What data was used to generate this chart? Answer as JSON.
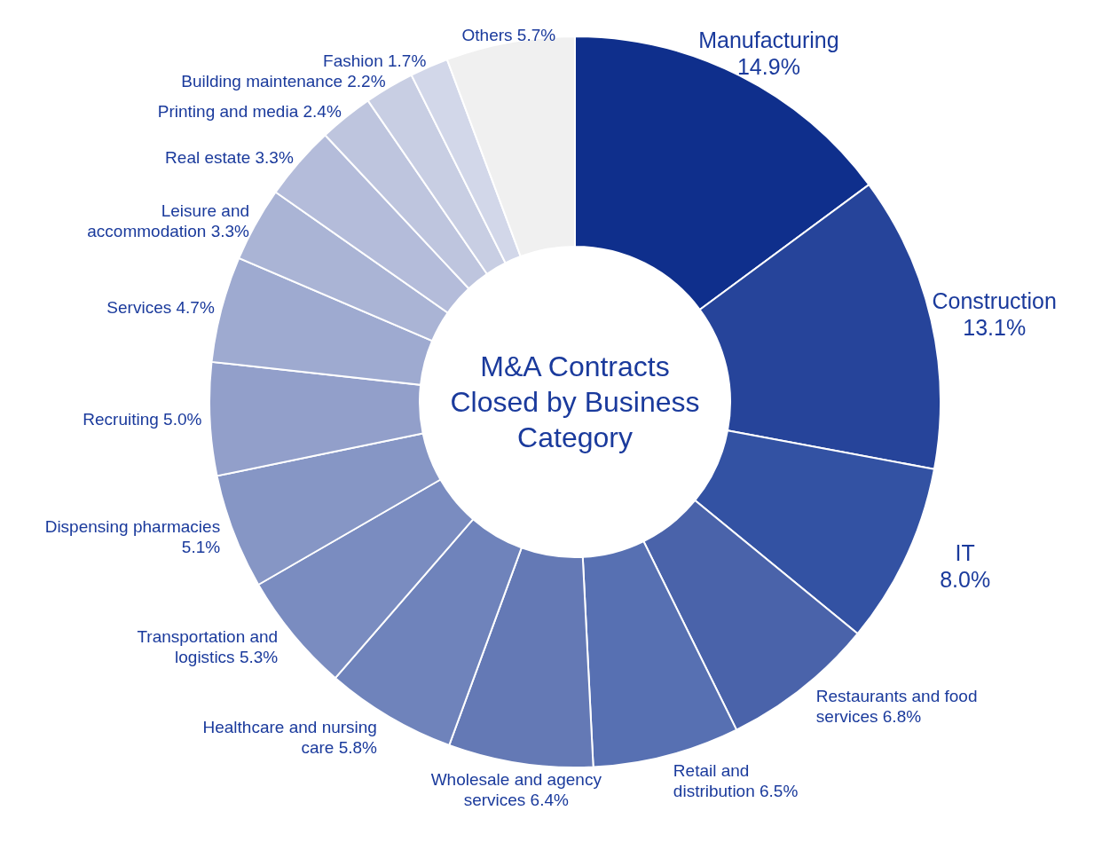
{
  "chart_data": {
    "type": "donut",
    "title": "M&A Contracts Closed by Business Category",
    "categories": [
      "Manufacturing",
      "Construction",
      "IT",
      "Restaurants and food services",
      "Retail and distribution",
      "Wholesale and agency services",
      "Healthcare and nursing care",
      "Transportation and logistics",
      "Dispensing pharmacies",
      "Recruiting",
      "Services",
      "Leisure and accommodation",
      "Real estate",
      "Printing and media",
      "Building maintenance",
      "Fashion",
      "Others"
    ],
    "values": [
      14.9,
      13.1,
      8.0,
      6.8,
      6.5,
      6.4,
      5.8,
      5.3,
      5.1,
      5.0,
      4.7,
      3.3,
      3.3,
      2.4,
      2.2,
      1.7,
      5.7
    ],
    "value_labels": [
      "14.9%",
      "13.1%",
      "8.0%",
      "6.8%",
      "6.5%",
      "6.4%",
      "5.8%",
      "5.3%",
      "5.1%",
      "5.0%",
      "4.7%",
      "3.3%",
      "3.3%",
      "2.4%",
      "2.2%",
      "1.7%",
      "5.7%"
    ],
    "colors": [
      "#0f2f8c",
      "#26449a",
      "#3352a3",
      "#4a63aa",
      "#5770b2",
      "#6479b5",
      "#6f83bb",
      "#7a8cc0",
      "#8696c5",
      "#929fca",
      "#9eaad0",
      "#aab4d5",
      "#b4bcda",
      "#bec5de",
      "#c8cee3",
      "#d2d7e9",
      "#f0f0f0"
    ],
    "legend": false
  }
}
